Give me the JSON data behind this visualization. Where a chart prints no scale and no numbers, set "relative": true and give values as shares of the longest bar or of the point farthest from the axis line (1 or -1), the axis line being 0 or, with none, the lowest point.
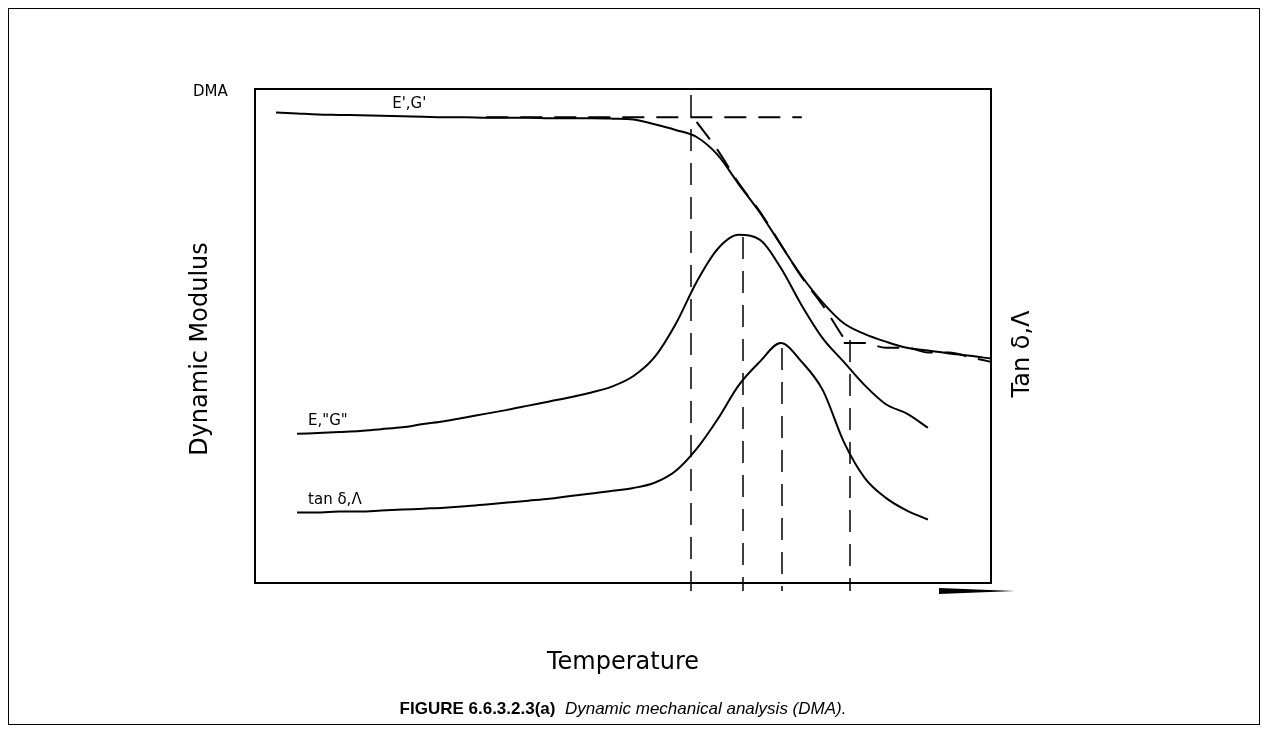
{
  "chart_data": {
    "type": "line",
    "relative": true,
    "xlabel": "Temperature",
    "ylabel": "Dynamic Modulus",
    "y2label": "Tan δ,Λ",
    "annotations": [
      "DMA",
      "FIGURE 6.6.3.2.3(a)",
      "Dynamic mechanical analysis (DMA)."
    ],
    "categories": [
      null,
      null,
      null,
      null,
      null,
      null,
      null,
      null,
      null,
      null,
      null,
      null,
      null,
      null,
      null,
      null,
      null,
      null,
      null,
      null,
      null,
      null,
      null,
      null,
      null,
      null,
      null,
      null,
      null,
      null,
      null,
      null,
      null,
      null,
      null,
      null
    ],
    "series": [
      {
        "name": "E',G'",
        "color": "#000000",
        "values": [
          null,
          1.0,
          0.998,
          0.996,
          0.995,
          0.994,
          0.993,
          0.992,
          0.991,
          0.99,
          0.99,
          0.989,
          0.989,
          0.989,
          0.988,
          0.988,
          0.988,
          0.987,
          0.985,
          0.975,
          0.963,
          0.948,
          0.91,
          0.848,
          0.788,
          0.719,
          0.652,
          0.596,
          0.552,
          0.529,
          0.513,
          0.5,
          0.494,
          0.488,
          0.483,
          0.477
        ]
      },
      {
        "name": "E,\"G\"",
        "color": "#000000",
        "values": [
          null,
          null,
          0.317,
          0.319,
          0.321,
          0.323,
          0.327,
          0.331,
          0.338,
          0.344,
          0.352,
          0.36,
          0.368,
          0.377,
          0.386,
          0.395,
          0.405,
          0.418,
          0.44,
          0.48,
          0.55,
          0.64,
          0.71,
          0.74,
          0.73,
          0.67,
          0.59,
          0.52,
          0.47,
          0.42,
          0.38,
          0.36,
          0.33,
          null,
          null,
          null
        ]
      },
      {
        "name": "tan δ,Λ",
        "color": "#000000",
        "values": [
          null,
          null,
          0.15,
          0.15,
          0.152,
          0.152,
          0.154,
          0.156,
          0.158,
          0.16,
          0.163,
          0.167,
          0.171,
          0.175,
          0.179,
          0.185,
          0.19,
          0.196,
          0.202,
          0.213,
          0.238,
          0.285,
          0.348,
          0.42,
          0.47,
          0.51,
          0.47,
          0.41,
          0.3,
          0.223,
          0.181,
          0.154,
          0.135,
          null,
          null,
          null
        ]
      },
      {
        "color": "#000000",
        "line_style": "dashed",
        "values": [
          null,
          null,
          null,
          null,
          null,
          null,
          null,
          null,
          null,
          null,
          null,
          0.99,
          0.99,
          0.99,
          0.99,
          0.99,
          0.99,
          0.99,
          0.99,
          0.99,
          0.99,
          0.99,
          0.99,
          0.99,
          0.99,
          0.99,
          0.99,
          null,
          null,
          null,
          null,
          null,
          null,
          null,
          null,
          null
        ]
      },
      {
        "color": "#000000",
        "line_style": "dashed",
        "values": [
          null,
          null,
          null,
          null,
          null,
          null,
          null,
          null,
          null,
          null,
          null,
          null,
          null,
          null,
          null,
          null,
          null,
          null,
          null,
          null,
          null,
          0.98,
          0.92,
          0.85,
          0.79,
          0.72,
          0.65,
          0.59,
          0.52,
          null,
          null,
          null,
          null,
          null,
          null,
          null
        ]
      },
      {
        "color": "#000000",
        "line_style": "dashed",
        "values": [
          null,
          null,
          null,
          null,
          null,
          null,
          null,
          null,
          null,
          null,
          null,
          null,
          null,
          null,
          null,
          null,
          null,
          null,
          null,
          null,
          null,
          null,
          null,
          null,
          null,
          null,
          null,
          null,
          0.51,
          0.51,
          0.5,
          0.5,
          0.49,
          0.49,
          0.48,
          0.47
        ]
      }
    ],
    "grid": false,
    "legend": false,
    "marker": "none",
    "line_style": "solid"
  }
}
